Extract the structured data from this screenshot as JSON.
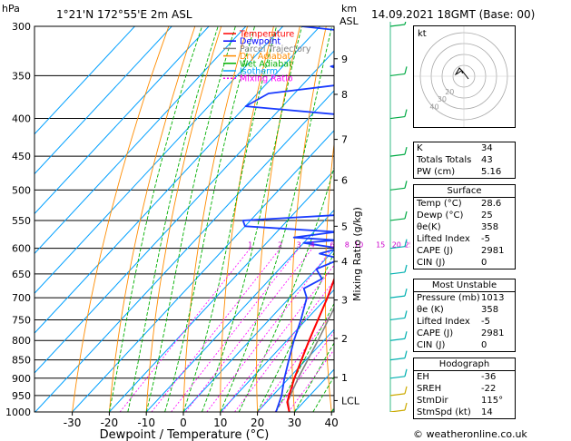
{
  "header": {
    "hpa_label": "hPa",
    "location": "1°21'N 172°55'E 2m ASL",
    "km_label": "km",
    "asl_label": "ASL",
    "datetime": "14.09.2021 18GMT (Base: 00)"
  },
  "legend": [
    {
      "label": "Temperature",
      "color": "#ff0000",
      "dash": ""
    },
    {
      "label": "Dewpoint",
      "color": "#0000ff",
      "dash": ""
    },
    {
      "label": "Parcel Trajectory",
      "color": "#808080",
      "dash": ""
    },
    {
      "label": "Dry Adiabat",
      "color": "#ff8c00",
      "dash": ""
    },
    {
      "label": "Wet Adiabat",
      "color": "#00b000",
      "dash": ""
    },
    {
      "label": "Isotherm",
      "color": "#00a0ff",
      "dash": ""
    },
    {
      "label": "Mixing Ratio",
      "color": "#ff00ff",
      "dash": "2,2"
    }
  ],
  "chart_data": {
    "type": "skew-t",
    "xlabel": "Dewpoint / Temperature (°C)",
    "ylabel_right": "Mixing Ratio (g/kg)",
    "x_ticks": [
      -30,
      -20,
      -10,
      0,
      10,
      20,
      30,
      40
    ],
    "pressure_levels": [
      300,
      350,
      400,
      450,
      500,
      550,
      600,
      650,
      700,
      750,
      800,
      850,
      900,
      950,
      1000
    ],
    "km_ticks": [
      {
        "label": "9",
        "p": 332
      },
      {
        "label": "8",
        "p": 371
      },
      {
        "label": "7",
        "p": 427
      },
      {
        "label": "6",
        "p": 485
      },
      {
        "label": "5",
        "p": 560
      },
      {
        "label": "4",
        "p": 625
      },
      {
        "label": "3",
        "p": 705
      },
      {
        "label": "2",
        "p": 795
      },
      {
        "label": "1",
        "p": 898
      },
      {
        "label": "LCL",
        "p": 965
      }
    ],
    "mixing_ratio_labels": [
      "1",
      "2",
      "3",
      "4",
      "6",
      "8",
      "10",
      "15",
      "20",
      "25"
    ],
    "mixing_ratio_values": [
      1,
      2,
      3,
      4,
      6,
      8,
      10,
      15,
      20,
      25
    ],
    "temperature": [
      {
        "p": 1000,
        "t": 28.6
      },
      {
        "p": 970,
        "t": 25.6
      },
      {
        "p": 950,
        "t": 24.4
      },
      {
        "p": 900,
        "t": 21.5
      },
      {
        "p": 850,
        "t": 18.8
      },
      {
        "p": 800,
        "t": 16.0
      },
      {
        "p": 750,
        "t": 13.2
      },
      {
        "p": 700,
        "t": 10.2
      },
      {
        "p": 650,
        "t": 6.6
      },
      {
        "p": 600,
        "t": 3.4
      },
      {
        "p": 550,
        "t": -0.5
      },
      {
        "p": 500,
        "t": -5.2
      },
      {
        "p": 450,
        "t": -10.8
      },
      {
        "p": 400,
        "t": -17.0
      },
      {
        "p": 380,
        "t": -20.0
      },
      {
        "p": 350,
        "t": -25.0
      },
      {
        "p": 330,
        "t": -28.5
      },
      {
        "p": 300,
        "t": -34.0
      }
    ],
    "dewpoint": [
      {
        "p": 1000,
        "t": 25.0
      },
      {
        "p": 950,
        "t": 22.4
      },
      {
        "p": 900,
        "t": 18.8
      },
      {
        "p": 850,
        "t": 15.4
      },
      {
        "p": 800,
        "t": 11.9
      },
      {
        "p": 750,
        "t": 8.6
      },
      {
        "p": 700,
        "t": 4.6
      },
      {
        "p": 680,
        "t": 1.5
      },
      {
        "p": 660,
        "t": 4.0
      },
      {
        "p": 640,
        "t": 0.0
      },
      {
        "p": 620,
        "t": 4.0
      },
      {
        "p": 610,
        "t": -3.0
      },
      {
        "p": 600,
        "t": 1.0
      },
      {
        "p": 590,
        "t": -10.0
      },
      {
        "p": 585,
        "t": -2.0
      },
      {
        "p": 580,
        "t": -14.0
      },
      {
        "p": 570,
        "t": -4.0
      },
      {
        "p": 560,
        "t": -30.0
      },
      {
        "p": 550,
        "t": -32.0
      },
      {
        "p": 540,
        "t": -6.0
      },
      {
        "p": 520,
        "t": -7.5
      },
      {
        "p": 500,
        "t": -11.0
      },
      {
        "p": 480,
        "t": -13.0
      },
      {
        "p": 460,
        "t": -13.5
      },
      {
        "p": 440,
        "t": -19.0
      },
      {
        "p": 420,
        "t": -17.0
      },
      {
        "p": 400,
        "t": -20.0
      },
      {
        "p": 385,
        "t": -60.0
      },
      {
        "p": 370,
        "t": -57.0
      },
      {
        "p": 360,
        "t": -40.0
      },
      {
        "p": 350,
        "t": -37.0
      },
      {
        "p": 340,
        "t": -47.0
      },
      {
        "p": 320,
        "t": -30.0
      },
      {
        "p": 310,
        "t": -36.0
      },
      {
        "p": 300,
        "t": -65.0
      }
    ],
    "parcel": [
      {
        "p": 1000,
        "t": 28.6
      },
      {
        "p": 965,
        "t": 25.4
      },
      {
        "p": 900,
        "t": 22.5
      },
      {
        "p": 850,
        "t": 20.5
      },
      {
        "p": 800,
        "t": 18.4
      },
      {
        "p": 750,
        "t": 16.0
      },
      {
        "p": 700,
        "t": 13.4
      },
      {
        "p": 650,
        "t": 10.4
      },
      {
        "p": 600,
        "t": 7.0
      },
      {
        "p": 550,
        "t": 3.0
      },
      {
        "p": 500,
        "t": -1.6
      },
      {
        "p": 450,
        "t": -6.8
      },
      {
        "p": 400,
        "t": -13.0
      },
      {
        "p": 350,
        "t": -20.5
      },
      {
        "p": 300,
        "t": -29.5
      }
    ]
  },
  "indices": {
    "rows": [
      {
        "label": "K",
        "value": "34"
      },
      {
        "label": "Totals Totals",
        "value": "43"
      },
      {
        "label": "PW (cm)",
        "value": "5.16"
      }
    ]
  },
  "surface": {
    "title": "Surface",
    "rows": [
      {
        "label": "Temp (°C)",
        "value": "28.6"
      },
      {
        "label": "Dewp (°C)",
        "value": "25"
      },
      {
        "label": "θe(K)",
        "value": "358"
      },
      {
        "label": "Lifted Index",
        "value": "-5"
      },
      {
        "label": "CAPE (J)",
        "value": "2981"
      },
      {
        "label": "CIN (J)",
        "value": "0"
      }
    ]
  },
  "most_unstable": {
    "title": "Most Unstable",
    "rows": [
      {
        "label": "Pressure (mb)",
        "value": "1013"
      },
      {
        "label": "θe (K)",
        "value": "358"
      },
      {
        "label": "Lifted Index",
        "value": "-5"
      },
      {
        "label": "CAPE (J)",
        "value": "2981"
      },
      {
        "label": "CIN (J)",
        "value": "0"
      }
    ]
  },
  "hodograph_table": {
    "title": "Hodograph",
    "rows": [
      {
        "label": "EH",
        "value": "-36"
      },
      {
        "label": "SREH",
        "value": "-22"
      },
      {
        "label": "StmDir",
        "value": "115°"
      },
      {
        "label": "StmSpd (kt)",
        "value": "14"
      }
    ]
  },
  "hodograph": {
    "unit_label": "kt",
    "ring_labels": [
      "20",
      "30",
      "40"
    ]
  },
  "footer": "© weatheronline.co.uk"
}
